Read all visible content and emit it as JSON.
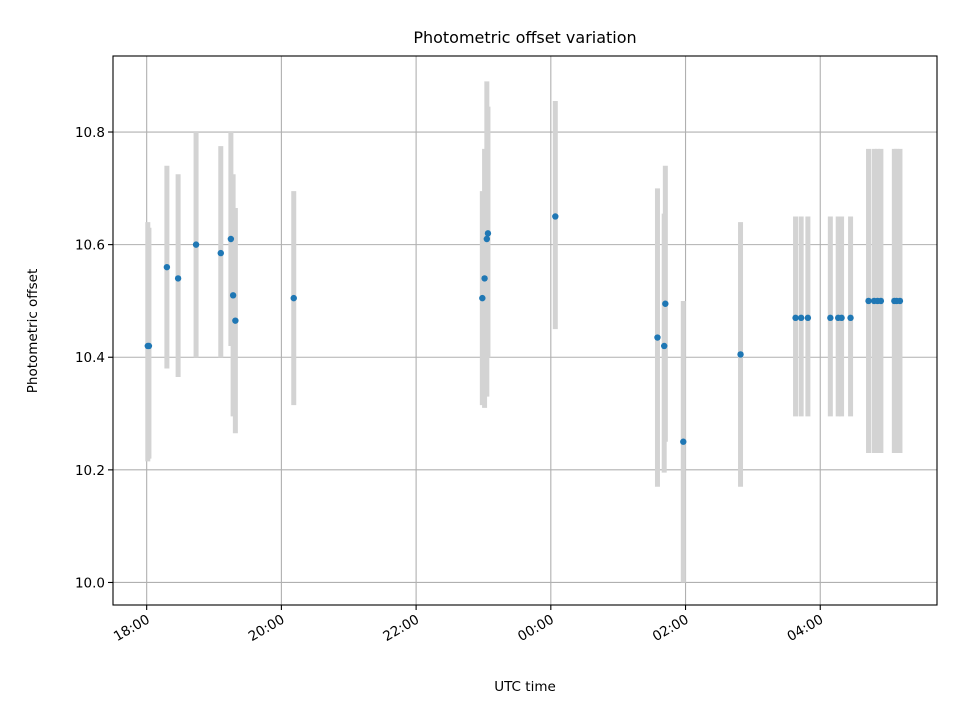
{
  "chart_data": {
    "type": "scatter",
    "title": "Photometric offset variation",
    "xlabel": "UTC time",
    "ylabel": "Photometric offset",
    "x_unit": "time (HH:MM, UTC, overnight)",
    "xlim": [
      "17:30",
      "23:45 (+1 day) 05:44"
    ],
    "x_range": [
      "17:30",
      "05:44"
    ],
    "ylim": [
      9.96,
      10.935
    ],
    "x_ticks": [
      "18:00",
      "20:00",
      "22:00",
      "00:00",
      "02:00",
      "04:00"
    ],
    "y_ticks": [
      "10.0",
      "10.2",
      "10.4",
      "10.6",
      "10.8"
    ],
    "grid": true,
    "colors": {
      "points": "#1f77b4",
      "errorbars": "#d3d3d3",
      "grid": "#b0b0b0"
    },
    "series": [
      {
        "points": [
          {
            "x": "18:01",
            "y": 10.42,
            "err_low": 10.215,
            "err_high": 10.64
          },
          {
            "x": "18:02",
            "y": 10.42,
            "err_low": 10.22,
            "err_high": 10.63
          },
          {
            "x": "18:18",
            "y": 10.56,
            "err_low": 10.38,
            "err_high": 10.74
          },
          {
            "x": "18:28",
            "y": 10.54,
            "err_low": 10.365,
            "err_high": 10.725
          },
          {
            "x": "18:44",
            "y": 10.6,
            "err_low": 10.4,
            "err_high": 10.8
          },
          {
            "x": "19:06",
            "y": 10.585,
            "err_low": 10.4,
            "err_high": 10.775
          },
          {
            "x": "19:15",
            "y": 10.61,
            "err_low": 10.42,
            "err_high": 10.8
          },
          {
            "x": "19:17",
            "y": 10.51,
            "err_low": 10.295,
            "err_high": 10.725
          },
          {
            "x": "19:19",
            "y": 10.465,
            "err_low": 10.265,
            "err_high": 10.665
          },
          {
            "x": "20:11",
            "y": 10.505,
            "err_low": 10.315,
            "err_high": 10.695
          },
          {
            "x": "22:59",
            "y": 10.505,
            "err_low": 10.315,
            "err_high": 10.695
          },
          {
            "x": "23:01",
            "y": 10.54,
            "err_low": 10.31,
            "err_high": 10.77
          },
          {
            "x": "23:03",
            "y": 10.61,
            "err_low": 10.33,
            "err_high": 10.89
          },
          {
            "x": "23:04",
            "y": 10.62,
            "err_low": 10.4,
            "err_high": 10.845
          },
          {
            "x": "00:04",
            "y": 10.65,
            "err_low": 10.45,
            "err_high": 10.855
          },
          {
            "x": "01:35",
            "y": 10.435,
            "err_low": 10.17,
            "err_high": 10.7
          },
          {
            "x": "01:41",
            "y": 10.42,
            "err_low": 10.195,
            "err_high": 10.655
          },
          {
            "x": "01:42",
            "y": 10.495,
            "err_low": 10.25,
            "err_high": 10.74
          },
          {
            "x": "01:58",
            "y": 10.25,
            "err_low": 10.0,
            "err_high": 10.5
          },
          {
            "x": "02:49",
            "y": 10.405,
            "err_low": 10.17,
            "err_high": 10.64
          },
          {
            "x": "03:38",
            "y": 10.47,
            "err_low": 10.295,
            "err_high": 10.65
          },
          {
            "x": "03:43",
            "y": 10.47,
            "err_low": 10.295,
            "err_high": 10.65
          },
          {
            "x": "03:49",
            "y": 10.47,
            "err_low": 10.295,
            "err_high": 10.65
          },
          {
            "x": "04:09",
            "y": 10.47,
            "err_low": 10.295,
            "err_high": 10.65
          },
          {
            "x": "04:16",
            "y": 10.47,
            "err_low": 10.295,
            "err_high": 10.65
          },
          {
            "x": "04:19",
            "y": 10.47,
            "err_low": 10.295,
            "err_high": 10.65
          },
          {
            "x": "04:27",
            "y": 10.47,
            "err_low": 10.295,
            "err_high": 10.65
          },
          {
            "x": "04:43",
            "y": 10.5,
            "err_low": 10.23,
            "err_high": 10.77
          },
          {
            "x": "04:48",
            "y": 10.5,
            "err_low": 10.23,
            "err_high": 10.77
          },
          {
            "x": "04:51",
            "y": 10.5,
            "err_low": 10.23,
            "err_high": 10.77
          },
          {
            "x": "04:54",
            "y": 10.5,
            "err_low": 10.23,
            "err_high": 10.77
          },
          {
            "x": "05:06",
            "y": 10.5,
            "err_low": 10.23,
            "err_high": 10.77
          },
          {
            "x": "05:08",
            "y": 10.5,
            "err_low": 10.23,
            "err_high": 10.77
          },
          {
            "x": "05:11",
            "y": 10.5,
            "err_low": 10.23,
            "err_high": 10.77
          }
        ]
      }
    ]
  }
}
